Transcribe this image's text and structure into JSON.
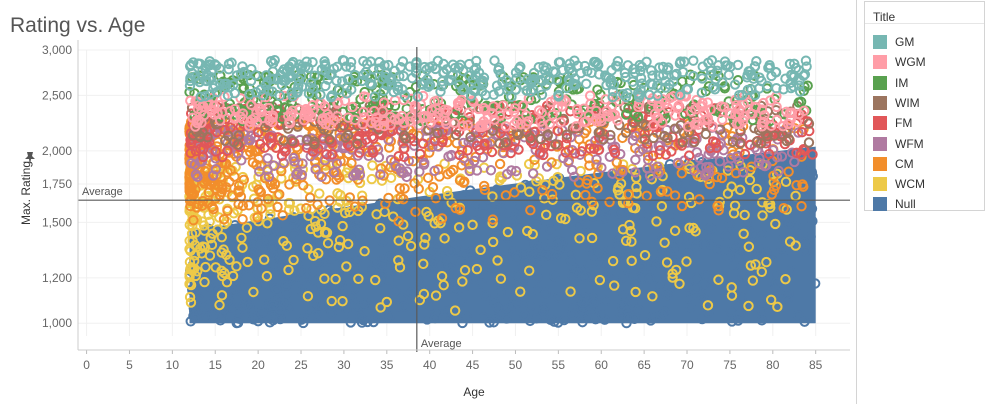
{
  "chart_data": {
    "type": "scatter",
    "title": "Rating vs. Age",
    "xlabel": "Age",
    "ylabel": "Max. Rating",
    "x_ticks": [
      0,
      5,
      10,
      15,
      20,
      25,
      30,
      35,
      40,
      45,
      50,
      55,
      60,
      65,
      70,
      75,
      80,
      85
    ],
    "y_ticks": [
      1000,
      1200,
      1500,
      1750,
      2000,
      2500,
      3000
    ],
    "y_tick_labels": [
      "1,000",
      "1,200",
      "1,500",
      "1,750",
      "2,000",
      "2,500",
      "3,000"
    ],
    "x_tick_labels": [
      "0",
      "5",
      "10",
      "15",
      "20",
      "25",
      "30",
      "35",
      "40",
      "45",
      "50",
      "55",
      "60",
      "65",
      "70",
      "75",
      "80",
      "85"
    ],
    "xlim": [
      -1,
      89
    ],
    "ylim": [
      950,
      3000
    ],
    "y_scale": "log",
    "marker": "open-circle",
    "grid": true,
    "legend_position": "right",
    "reference_lines": [
      {
        "axis": "x",
        "label": "Average",
        "value": 38.5
      },
      {
        "axis": "y",
        "label": "Average",
        "value": 1640
      }
    ],
    "legend_title": "Title",
    "series": [
      {
        "name": "GM",
        "color": "#76b7b2",
        "x_range": [
          12,
          84
        ],
        "y_range": [
          2480,
          2880
        ]
      },
      {
        "name": "WGM",
        "color": "#ff9da7",
        "x_range": [
          12,
          84
        ],
        "y_range": [
          2200,
          2500
        ]
      },
      {
        "name": "IM",
        "color": "#59a14f",
        "x_range": [
          12,
          85
        ],
        "y_range": [
          2250,
          2720
        ]
      },
      {
        "name": "WIM",
        "color": "#9c755f",
        "x_range": [
          12,
          85
        ],
        "y_range": [
          2050,
          2400
        ]
      },
      {
        "name": "FM",
        "color": "#e15759",
        "x_range": [
          12,
          85
        ],
        "y_range": [
          1950,
          2400
        ]
      },
      {
        "name": "WFM",
        "color": "#b07aa1",
        "x_range": [
          12,
          84
        ],
        "y_range": [
          1800,
          2200
        ]
      },
      {
        "name": "CM",
        "color": "#f28e2b",
        "x_range": [
          12,
          84
        ],
        "y_range": [
          1500,
          2250
        ]
      },
      {
        "name": "WCM",
        "color": "#edc948",
        "x_range": [
          12,
          84
        ],
        "y_range": [
          1050,
          1900
        ]
      },
      {
        "name": "Null",
        "color": "#4e79a7",
        "x_range": [
          12,
          85
        ],
        "y_range": [
          1000,
          2050
        ]
      }
    ]
  }
}
